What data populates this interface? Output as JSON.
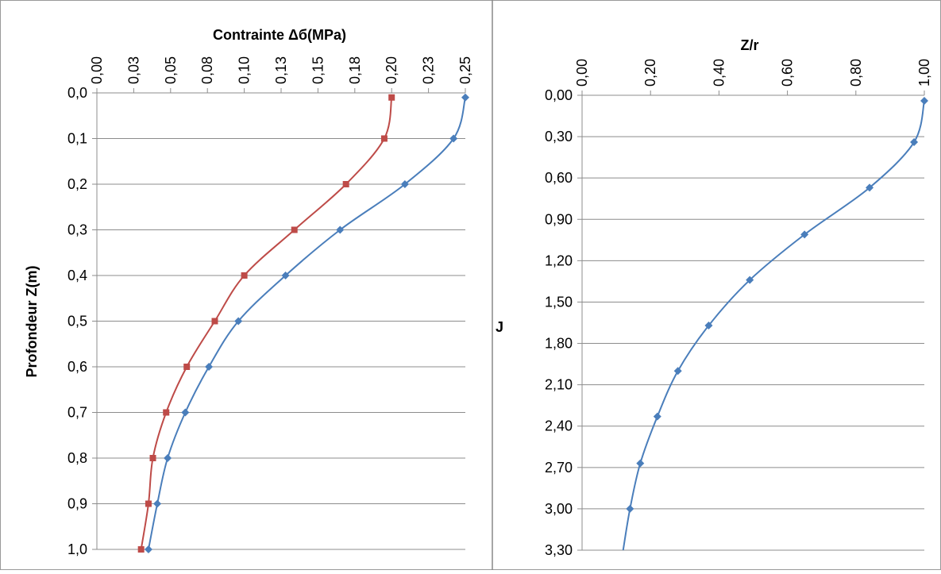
{
  "chart_data": [
    {
      "type": "line",
      "title": "Contrainte Δб(MPa)",
      "xlabel": "Contrainte Δб(MPa)",
      "ylabel": "Profondeur Z(m)",
      "x_axis_position": "top",
      "y_axis_inverted": true,
      "xlim": [
        0,
        0.25
      ],
      "ylim": [
        0,
        1.0
      ],
      "x_ticks": [
        "0,00",
        "0,03",
        "0,05",
        "0,08",
        "0,10",
        "0,13",
        "0,15",
        "0,18",
        "0,20",
        "0,23",
        "0,25"
      ],
      "y_ticks": [
        "0,0",
        "0,1",
        "0,2",
        "0,3",
        "0,4",
        "0,5",
        "0,6",
        "0,7",
        "0,8",
        "0,9",
        "1,0"
      ],
      "grid": "horizontal",
      "series": [
        {
          "color": "#4a7ebb",
          "marker": "diamond",
          "points": [
            {
              "x": 0.25,
              "y": 0.01
            },
            {
              "x": 0.242,
              "y": 0.1
            },
            {
              "x": 0.209,
              "y": 0.2
            },
            {
              "x": 0.165,
              "y": 0.3
            },
            {
              "x": 0.128,
              "y": 0.4
            },
            {
              "x": 0.096,
              "y": 0.5
            },
            {
              "x": 0.076,
              "y": 0.6
            },
            {
              "x": 0.06,
              "y": 0.7
            },
            {
              "x": 0.048,
              "y": 0.8
            },
            {
              "x": 0.041,
              "y": 0.9
            },
            {
              "x": 0.035,
              "y": 1.0
            }
          ]
        },
        {
          "color": "#be4b48",
          "marker": "square",
          "points": [
            {
              "x": 0.2,
              "y": 0.01
            },
            {
              "x": 0.195,
              "y": 0.1
            },
            {
              "x": 0.169,
              "y": 0.2
            },
            {
              "x": 0.134,
              "y": 0.3
            },
            {
              "x": 0.1,
              "y": 0.4
            },
            {
              "x": 0.08,
              "y": 0.5
            },
            {
              "x": 0.061,
              "y": 0.6
            },
            {
              "x": 0.047,
              "y": 0.7
            },
            {
              "x": 0.038,
              "y": 0.8
            },
            {
              "x": 0.035,
              "y": 0.9
            },
            {
              "x": 0.03,
              "y": 1.0
            }
          ]
        }
      ]
    },
    {
      "type": "line",
      "title": "Z/r",
      "xlabel": "Z/r",
      "ylabel": "J",
      "x_axis_position": "top",
      "y_axis_inverted": true,
      "xlim": [
        0,
        1.0
      ],
      "ylim": [
        0,
        3.3
      ],
      "x_ticks": [
        "0,00",
        "0,20",
        "0,40",
        "0,60",
        "0,80",
        "1,00"
      ],
      "y_ticks": [
        "0,00",
        "0,30",
        "0,60",
        "0,90",
        "1,20",
        "1,50",
        "1,80",
        "2,10",
        "2,40",
        "2,70",
        "3,00",
        "3,30"
      ],
      "grid": "horizontal",
      "series": [
        {
          "color": "#4a7ebb",
          "marker": "diamond",
          "points": [
            {
              "x": 1.0,
              "y": 0.04
            },
            {
              "x": 0.97,
              "y": 0.34
            },
            {
              "x": 0.84,
              "y": 0.67
            },
            {
              "x": 0.65,
              "y": 1.01
            },
            {
              "x": 0.49,
              "y": 1.34
            },
            {
              "x": 0.37,
              "y": 1.67
            },
            {
              "x": 0.28,
              "y": 2.0
            },
            {
              "x": 0.22,
              "y": 2.33
            },
            {
              "x": 0.17,
              "y": 2.67
            },
            {
              "x": 0.14,
              "y": 3.0
            },
            {
              "x": 0.12,
              "y": 3.3
            }
          ],
          "marker_count": 10
        }
      ]
    }
  ]
}
